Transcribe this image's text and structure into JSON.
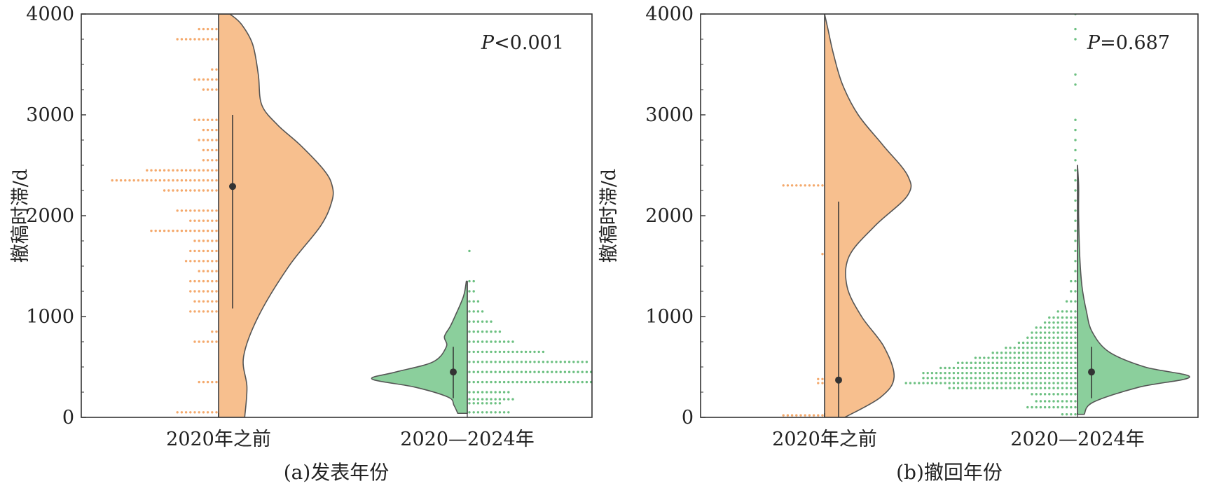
{
  "colors": {
    "before_fill": "#f7bf8e",
    "before_dot": "#f4a96c",
    "after_fill": "#8bcf9c",
    "after_dot": "#6cc081",
    "outline": "#555555",
    "axis": "#333333",
    "summary": "#333333"
  },
  "chart_data": [
    {
      "type": "violin",
      "caption": "(a)发表年份",
      "ylabel": "撤稿时滞/d",
      "ylim": [
        0,
        4000
      ],
      "yticks": [
        0,
        1000,
        2000,
        3000,
        4000
      ],
      "grid": false,
      "annotation": {
        "italic": "P",
        "rest": "<0.001"
      },
      "groups": [
        {
          "category": "2020年之前",
          "median": 2290,
          "range": [
            1080,
            3000
          ],
          "density": [
            [
              0,
              0.23
            ],
            [
              300,
              0.25
            ],
            [
              600,
              0.22
            ],
            [
              1000,
              0.35
            ],
            [
              1500,
              0.62
            ],
            [
              1900,
              0.9
            ],
            [
              2150,
              1.0
            ],
            [
              2300,
              1.0
            ],
            [
              2450,
              0.93
            ],
            [
              2700,
              0.72
            ],
            [
              2900,
              0.52
            ],
            [
              3100,
              0.38
            ],
            [
              3400,
              0.35
            ],
            [
              3700,
              0.3
            ],
            [
              3900,
              0.2
            ],
            [
              4000,
              0.1
            ]
          ],
          "histogram": [
            [
              50,
              10
            ],
            [
              350,
              5
            ],
            [
              750,
              6
            ],
            [
              850,
              2
            ],
            [
              1050,
              7
            ],
            [
              1150,
              6
            ],
            [
              1250,
              7
            ],
            [
              1350,
              7
            ],
            [
              1450,
              5
            ],
            [
              1550,
              8
            ],
            [
              1650,
              7
            ],
            [
              1750,
              6
            ],
            [
              1850,
              16
            ],
            [
              1950,
              7
            ],
            [
              2050,
              10
            ],
            [
              2250,
              13
            ],
            [
              2350,
              25
            ],
            [
              2450,
              17
            ],
            [
              2550,
              4
            ],
            [
              2650,
              4
            ],
            [
              2750,
              5
            ],
            [
              2850,
              4
            ],
            [
              2950,
              6
            ],
            [
              3250,
              4
            ],
            [
              3350,
              6
            ],
            [
              3450,
              2
            ],
            [
              3750,
              10
            ],
            [
              3850,
              5
            ]
          ]
        },
        {
          "category": "2020—2024年",
          "median": 450,
          "range": [
            190,
            700
          ],
          "density": [
            [
              40,
              0.1
            ],
            [
              120,
              0.14
            ],
            [
              200,
              0.2
            ],
            [
              300,
              0.55
            ],
            [
              380,
              1.0
            ],
            [
              450,
              0.75
            ],
            [
              550,
              0.36
            ],
            [
              700,
              0.22
            ],
            [
              800,
              0.24
            ],
            [
              900,
              0.18
            ],
            [
              1000,
              0.13
            ],
            [
              1200,
              0.04
            ],
            [
              1350,
              0.01
            ]
          ],
          "histogram": [
            [
              50,
              10
            ],
            [
              140,
              8
            ],
            [
              180,
              11
            ],
            [
              250,
              10
            ],
            [
              350,
              51
            ],
            [
              450,
              48
            ],
            [
              550,
              28
            ],
            [
              650,
              18
            ],
            [
              750,
              11
            ],
            [
              850,
              8
            ],
            [
              950,
              6
            ],
            [
              1050,
              4
            ],
            [
              1150,
              3
            ],
            [
              1250,
              2
            ],
            [
              1350,
              2
            ],
            [
              1650,
              1
            ]
          ]
        }
      ]
    },
    {
      "type": "violin",
      "caption": "(b)撤回年份",
      "ylabel": "撤稿时滞/d",
      "ylim": [
        0,
        4000
      ],
      "yticks": [
        0,
        1000,
        2000,
        3000,
        4000
      ],
      "grid": false,
      "annotation": {
        "italic": "P",
        "rest": "=0.687"
      },
      "groups": [
        {
          "category": "2020年之前",
          "median": 370,
          "range": [
            0,
            2140
          ],
          "density": [
            [
              0,
              0.18
            ],
            [
              200,
              0.5
            ],
            [
              400,
              0.62
            ],
            [
              700,
              0.53
            ],
            [
              1000,
              0.33
            ],
            [
              1300,
              0.2
            ],
            [
              1600,
              0.22
            ],
            [
              1900,
              0.45
            ],
            [
              2200,
              0.74
            ],
            [
              2400,
              0.74
            ],
            [
              2700,
              0.52
            ],
            [
              3000,
              0.3
            ],
            [
              3300,
              0.16
            ],
            [
              3600,
              0.08
            ],
            [
              3850,
              0.03
            ],
            [
              4000,
              0.0
            ]
          ],
          "histogram": [
            [
              20,
              10
            ],
            [
              340,
              2
            ],
            [
              380,
              2
            ],
            [
              1620,
              1
            ],
            [
              2300,
              10
            ]
          ]
        },
        {
          "category": "2020—2024年",
          "median": 450,
          "range": [
            190,
            700
          ],
          "density": [
            [
              30,
              0.06
            ],
            [
              150,
              0.14
            ],
            [
              300,
              0.55
            ],
            [
              400,
              1.0
            ],
            [
              500,
              0.6
            ],
            [
              650,
              0.28
            ],
            [
              850,
              0.13
            ],
            [
              1050,
              0.08
            ],
            [
              1300,
              0.04
            ],
            [
              1600,
              0.02
            ],
            [
              2000,
              0.01
            ],
            [
              2300,
              0.01
            ],
            [
              2500,
              0.0
            ]
          ],
          "histogram": [
            [
              30,
              4
            ],
            [
              100,
              12
            ],
            [
              160,
              10
            ],
            [
              230,
              11
            ],
            [
              290,
              30
            ],
            [
              340,
              40
            ],
            [
              390,
              36
            ],
            [
              440,
              36
            ],
            [
              490,
              32
            ],
            [
              540,
              28
            ],
            [
              590,
              24
            ],
            [
              640,
              20
            ],
            [
              690,
              17
            ],
            [
              740,
              14
            ],
            [
              790,
              12
            ],
            [
              840,
              11
            ],
            [
              890,
              10
            ],
            [
              940,
              8
            ],
            [
              990,
              7
            ],
            [
              1050,
              5
            ],
            [
              1150,
              3
            ],
            [
              1250,
              2
            ],
            [
              1350,
              2
            ],
            [
              1450,
              1
            ],
            [
              1550,
              1
            ],
            [
              1650,
              1
            ],
            [
              1750,
              1
            ],
            [
              1850,
              1
            ],
            [
              1950,
              1
            ],
            [
              2050,
              1
            ],
            [
              2150,
              1
            ],
            [
              2250,
              1
            ],
            [
              2350,
              1
            ],
            [
              2450,
              1
            ],
            [
              2550,
              1
            ],
            [
              2650,
              1
            ],
            [
              2750,
              1
            ],
            [
              2850,
              1
            ],
            [
              2950,
              1
            ],
            [
              3300,
              1
            ],
            [
              3400,
              1
            ],
            [
              3750,
              1
            ],
            [
              3850,
              1
            ],
            [
              4000,
              1
            ]
          ]
        }
      ]
    }
  ]
}
